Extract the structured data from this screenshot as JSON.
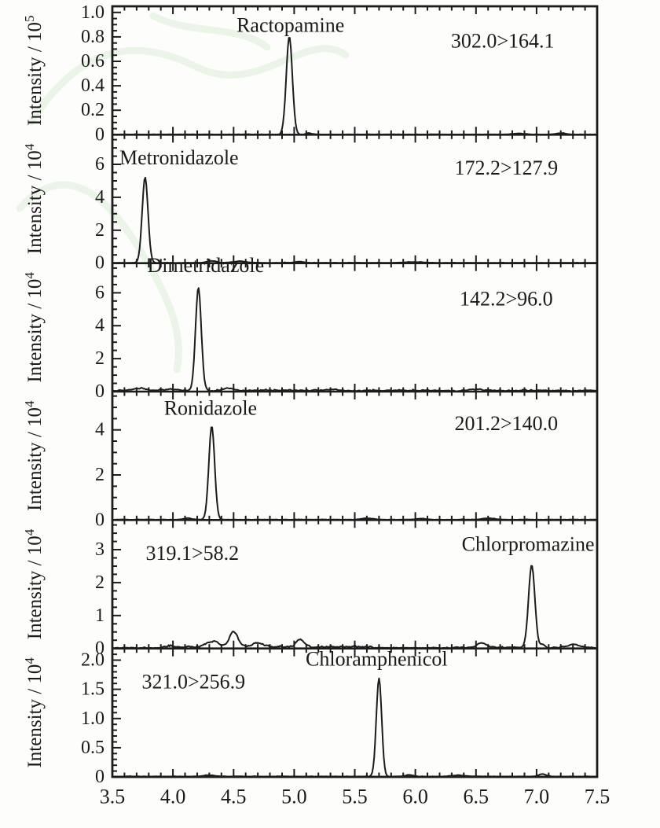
{
  "figure": {
    "type": "stacked MRM chromatograms",
    "background_color": "#fdfdfb",
    "line_color": "#1c1c1c",
    "watermark_color": "#e6f3e3",
    "panel_count": 6
  },
  "x_axis": {
    "range": [
      3.5,
      7.5
    ],
    "major_step": 0.5,
    "minor_step": 0.1,
    "ticks": [
      3.5,
      4.0,
      4.5,
      5.0,
      5.5,
      6.0,
      6.5,
      7.0,
      7.5
    ],
    "tick_labels": [
      "3.5",
      "4.0",
      "4.5",
      "5.0",
      "5.5",
      "6.0",
      "6.5",
      "7.0",
      "7.5"
    ]
  },
  "chart_data": [
    {
      "type": "line",
      "name": "Ractopamine",
      "transition": "302.0>164.1",
      "ylabel_base": "Intensity / 10",
      "ylabel_exponent": "5",
      "ylim": [
        0,
        1.05
      ],
      "yticks": [
        0,
        0.2,
        0.4,
        0.6,
        0.8,
        1.0
      ],
      "ytick_labels": [
        "0",
        "0.2",
        "0.4",
        "0.6",
        "0.8",
        "1.0"
      ],
      "ytick_step": 0.2,
      "y_minor_div": 4,
      "peaks": [
        {
          "x": 4.96,
          "height": 0.8,
          "sigma": 0.025
        }
      ],
      "minor_features": [
        {
          "x": 5.12,
          "h": 0.012,
          "s": 0.02
        },
        {
          "x": 6.85,
          "h": 0.008,
          "s": 0.05
        },
        {
          "x": 7.2,
          "h": 0.01,
          "s": 0.04
        }
      ],
      "noise_base": 0.004,
      "noise_regions": [],
      "annotations": {
        "name_pos": {
          "x": 4.97,
          "yfrac": 0.8
        },
        "transition_pos": {
          "x": 6.72,
          "yfrac": 0.68
        }
      }
    },
    {
      "type": "line",
      "name": "Metronidazole",
      "transition": "172.2>127.9",
      "ylabel_base": "Intensity / 10",
      "ylabel_exponent": "4",
      "ylim": [
        0,
        7.8
      ],
      "yticks": [
        0,
        2,
        4,
        6
      ],
      "ytick_labels": [
        "0",
        "2",
        "4",
        "6"
      ],
      "ytick_step": 2,
      "y_minor_div": 4,
      "peaks": [
        {
          "x": 3.77,
          "height": 5.2,
          "sigma": 0.024
        }
      ],
      "minor_features": [
        {
          "x": 4.32,
          "h": 0.12,
          "s": 0.04
        },
        {
          "x": 4.55,
          "h": 0.1,
          "s": 0.05
        },
        {
          "x": 5.05,
          "h": 0.07,
          "s": 0.04
        },
        {
          "x": 6.0,
          "h": 0.05,
          "s": 0.08
        }
      ],
      "noise_base": 0.035,
      "noise_regions": [],
      "annotations": {
        "name_pos": {
          "x": 4.05,
          "yfrac": 0.77
        },
        "transition_pos": {
          "x": 6.75,
          "yfrac": 0.69
        }
      }
    },
    {
      "type": "line",
      "name": "Dimetridazole",
      "transition": "142.2>96.0",
      "ylabel_base": "Intensity / 10",
      "ylabel_exponent": "4",
      "ylim": [
        0,
        7.8
      ],
      "yticks": [
        0,
        2,
        4,
        6
      ],
      "ytick_labels": [
        "0",
        "2",
        "4",
        "6"
      ],
      "ytick_step": 2,
      "y_minor_div": 4,
      "peaks": [
        {
          "x": 4.21,
          "height": 6.2,
          "sigma": 0.024
        }
      ],
      "minor_features": [
        {
          "x": 3.72,
          "h": 0.12,
          "s": 0.06
        },
        {
          "x": 4.0,
          "h": 0.1,
          "s": 0.05
        },
        {
          "x": 4.45,
          "h": 0.15,
          "s": 0.04
        },
        {
          "x": 5.3,
          "h": 0.08,
          "s": 0.06
        },
        {
          "x": 6.5,
          "h": 0.08,
          "s": 0.05
        }
      ],
      "noise_base": 0.11,
      "noise_regions": [],
      "annotations": {
        "name_pos": {
          "x": 4.27,
          "yfrac": 0.93
        },
        "transition_pos": {
          "x": 6.75,
          "yfrac": 0.67
        }
      }
    },
    {
      "type": "line",
      "name": "Ronidazole",
      "transition": "201.2>140.0",
      "ylabel_base": "Intensity / 10",
      "ylabel_exponent": "4",
      "ylim": [
        0,
        5.7
      ],
      "yticks": [
        0,
        2,
        4
      ],
      "ytick_labels": [
        "0",
        "2",
        "4"
      ],
      "ytick_step": 2,
      "y_minor_div": 4,
      "peaks": [
        {
          "x": 4.32,
          "height": 4.15,
          "sigma": 0.024
        }
      ],
      "minor_features": [
        {
          "x": 4.12,
          "h": 0.07,
          "s": 0.03
        },
        {
          "x": 5.6,
          "h": 0.06,
          "s": 0.05
        },
        {
          "x": 6.05,
          "h": 0.05,
          "s": 0.04
        },
        {
          "x": 6.6,
          "h": 0.06,
          "s": 0.05
        }
      ],
      "noise_base": 0.03,
      "noise_regions": [],
      "annotations": {
        "name_pos": {
          "x": 4.31,
          "yfrac": 0.82
        },
        "transition_pos": {
          "x": 6.75,
          "yfrac": 0.7
        }
      }
    },
    {
      "type": "line",
      "name": "Chlorpromazine",
      "transition": "319.1>58.2",
      "ylabel_base": "Intensity / 10",
      "ylabel_exponent": "4",
      "ylim": [
        0,
        3.9
      ],
      "yticks": [
        0,
        1,
        2,
        3
      ],
      "ytick_labels": [
        "0",
        "1",
        "2",
        "3"
      ],
      "ytick_step": 1,
      "y_minor_div": 4,
      "peaks": [
        {
          "x": 6.96,
          "height": 2.5,
          "sigma": 0.026
        }
      ],
      "minor_features": [
        {
          "x": 4.5,
          "h": 0.45,
          "s": 0.035
        },
        {
          "x": 4.33,
          "h": 0.17,
          "s": 0.05
        },
        {
          "x": 4.7,
          "h": 0.12,
          "s": 0.05
        },
        {
          "x": 5.05,
          "h": 0.22,
          "s": 0.035
        },
        {
          "x": 6.55,
          "h": 0.14,
          "s": 0.04
        },
        {
          "x": 7.05,
          "h": 0.08,
          "s": 0.02
        },
        {
          "x": 7.3,
          "h": 0.09,
          "s": 0.05
        }
      ],
      "noise_base": 0.028,
      "noise_regions": [
        {
          "from": 3.9,
          "to": 5.65,
          "amp": 0.085
        },
        {
          "from": 6.3,
          "to": 7.5,
          "amp": 0.05
        }
      ],
      "annotations": {
        "name_pos": {
          "x": 6.93,
          "yfrac": 0.76
        },
        "transition_pos": {
          "x": 4.16,
          "yfrac": 0.69
        }
      }
    },
    {
      "type": "line",
      "name": "Chloramphenicol",
      "transition": "321.0>256.9",
      "ylabel_base": "Intensity / 10",
      "ylabel_exponent": "4",
      "ylim": [
        0,
        2.2
      ],
      "yticks": [
        0,
        0.5,
        1.0,
        1.5,
        2.0
      ],
      "ytick_labels": [
        "0",
        "0.5",
        "1.0",
        "1.5",
        "2.0"
      ],
      "ytick_step": 0.5,
      "y_minor_div": 5,
      "peaks": [
        {
          "x": 5.7,
          "height": 1.68,
          "sigma": 0.022
        }
      ],
      "minor_features": [
        {
          "x": 4.3,
          "h": 0.02,
          "s": 0.05
        },
        {
          "x": 5.95,
          "h": 0.03,
          "s": 0.03
        },
        {
          "x": 6.35,
          "h": 0.02,
          "s": 0.06
        },
        {
          "x": 7.05,
          "h": 0.04,
          "s": 0.03
        }
      ],
      "noise_base": 0.012,
      "noise_regions": [],
      "annotations": {
        "name_pos": {
          "x": 5.68,
          "yfrac": 0.865
        },
        "transition_pos": {
          "x": 4.17,
          "yfrac": 0.69
        }
      }
    }
  ]
}
